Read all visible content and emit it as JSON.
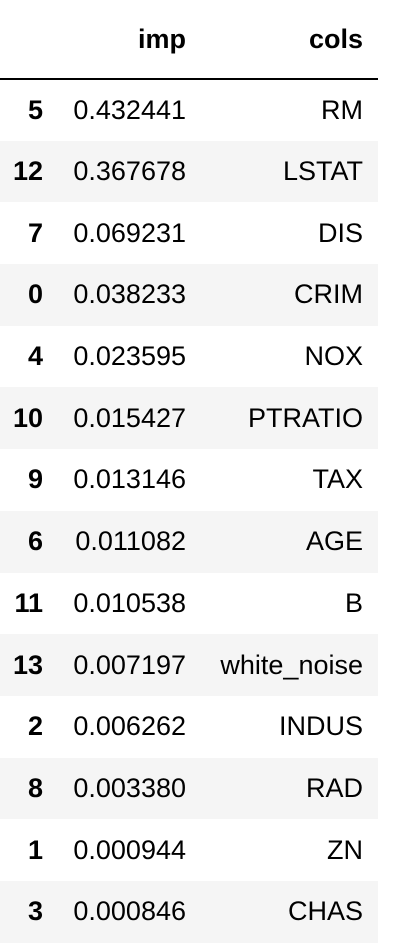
{
  "table": {
    "headers": {
      "index": "",
      "imp": "imp",
      "cols": "cols"
    },
    "rows": [
      {
        "index": "5",
        "imp": "0.432441",
        "cols": "RM"
      },
      {
        "index": "12",
        "imp": "0.367678",
        "cols": "LSTAT"
      },
      {
        "index": "7",
        "imp": "0.069231",
        "cols": "DIS"
      },
      {
        "index": "0",
        "imp": "0.038233",
        "cols": "CRIM"
      },
      {
        "index": "4",
        "imp": "0.023595",
        "cols": "NOX"
      },
      {
        "index": "10",
        "imp": "0.015427",
        "cols": "PTRATIO"
      },
      {
        "index": "9",
        "imp": "0.013146",
        "cols": "TAX"
      },
      {
        "index": "6",
        "imp": "0.011082",
        "cols": "AGE"
      },
      {
        "index": "11",
        "imp": "0.010538",
        "cols": "B"
      },
      {
        "index": "13",
        "imp": "0.007197",
        "cols": "white_noise"
      },
      {
        "index": "2",
        "imp": "0.006262",
        "cols": "INDUS"
      },
      {
        "index": "8",
        "imp": "0.003380",
        "cols": "RAD"
      },
      {
        "index": "1",
        "imp": "0.000944",
        "cols": "ZN"
      },
      {
        "index": "3",
        "imp": "0.000846",
        "cols": "CHAS"
      }
    ]
  }
}
